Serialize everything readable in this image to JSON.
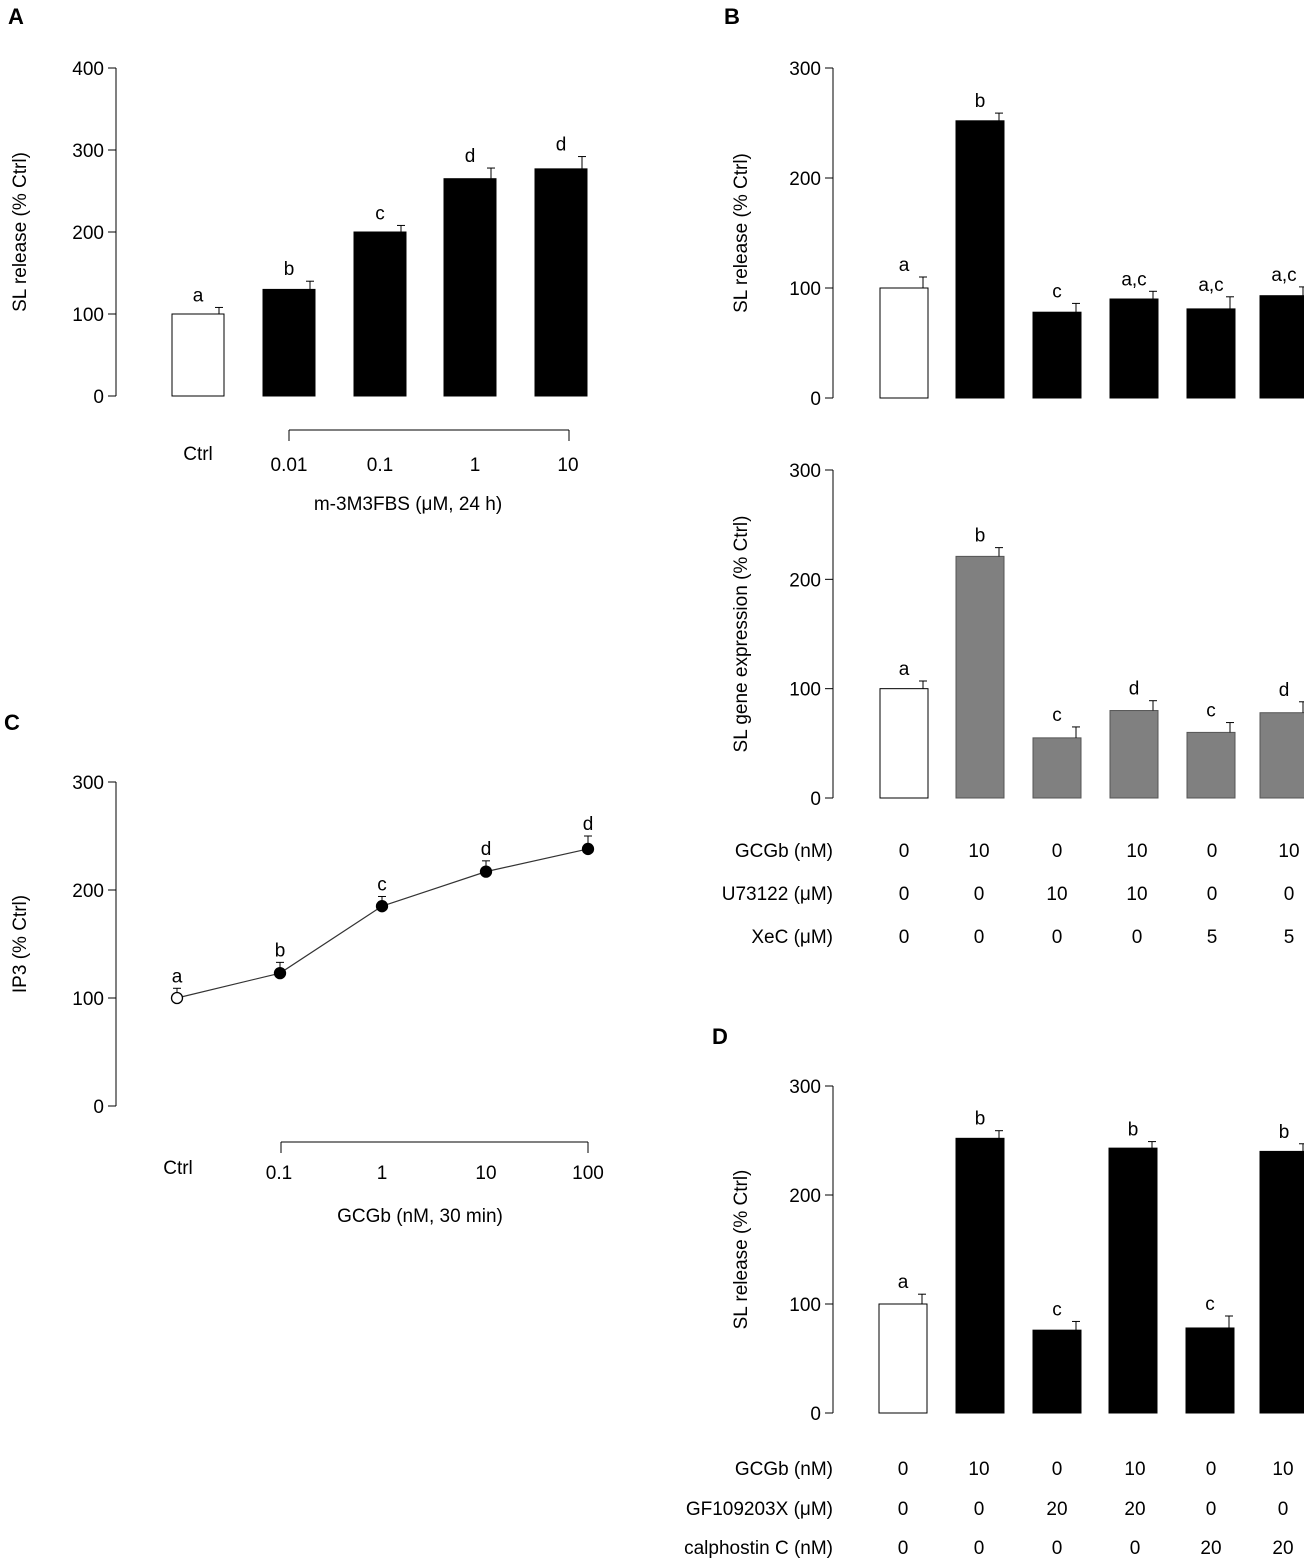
{
  "colors": {
    "black": "#000000",
    "white": "#ffffff",
    "gray": "#808080",
    "axis": "#000000"
  },
  "chart_data": [
    {
      "panel": "A",
      "type": "bar",
      "categories": [
        "Ctrl",
        "0.01",
        "0.1",
        "1",
        "10"
      ],
      "values": [
        100,
        130,
        200,
        265,
        277
      ],
      "errors": [
        8,
        10,
        8,
        13,
        15
      ],
      "fills": [
        "white",
        "black",
        "black",
        "black",
        "black"
      ],
      "letters": [
        "a",
        "b",
        "c",
        "d",
        "d"
      ],
      "ylabel": "SL release (% Ctrl)",
      "xlabel": "m-3M3FBS (μM, 24 h)",
      "ylim": [
        0,
        400
      ],
      "yticks": [
        "0",
        "100",
        "200",
        "300",
        "400"
      ]
    },
    {
      "panel": "B",
      "type": "bar",
      "values": [
        100,
        252,
        78,
        90,
        81,
        93
      ],
      "errors": [
        10,
        7,
        8,
        7,
        11,
        8
      ],
      "fills": [
        "white",
        "black",
        "black",
        "black",
        "black",
        "black"
      ],
      "letters": [
        "a",
        "b",
        "c",
        "a,c",
        "a,c",
        "a,c"
      ],
      "ylabel": "SL release (% Ctrl)",
      "ylim": [
        0,
        300
      ],
      "yticks": [
        "0",
        "100",
        "200",
        "300"
      ]
    },
    {
      "panel": "B-lower",
      "type": "bar",
      "values": [
        100,
        221,
        55,
        80,
        60,
        78
      ],
      "errors": [
        7,
        8,
        10,
        9,
        9,
        10
      ],
      "fills": [
        "white",
        "gray",
        "gray",
        "gray",
        "gray",
        "gray"
      ],
      "letters": [
        "a",
        "b",
        "c",
        "d",
        "c",
        "d"
      ],
      "ylabel": "SL gene expression (% Ctrl)",
      "ylim": [
        0,
        300
      ],
      "yticks": [
        "0",
        "100",
        "200",
        "300"
      ],
      "treatments": [
        {
          "label": "GCGb (nM)",
          "values": [
            "0",
            "10",
            "0",
            "10",
            "0",
            "10"
          ]
        },
        {
          "label": "U73122 (μM)",
          "values": [
            "0",
            "0",
            "10",
            "10",
            "0",
            "0"
          ]
        },
        {
          "label": "XeC (μM)",
          "values": [
            "0",
            "0",
            "0",
            "0",
            "5",
            "5"
          ]
        }
      ]
    },
    {
      "panel": "C",
      "type": "line",
      "categories": [
        "Ctrl",
        "0.1",
        "1",
        "10",
        "100"
      ],
      "values": [
        100,
        123,
        185,
        217,
        238
      ],
      "errors": [
        9,
        10,
        9,
        10,
        12
      ],
      "letters": [
        "a",
        "b",
        "c",
        "d",
        "d"
      ],
      "ylabel": "IP3 (% Ctrl)",
      "xlabel": "GCGb (nM, 30 min)",
      "ylim": [
        0,
        300
      ],
      "yticks": [
        "0",
        "100",
        "200",
        "300"
      ]
    },
    {
      "panel": "D",
      "type": "bar",
      "values": [
        100,
        252,
        76,
        243,
        78,
        240
      ],
      "errors": [
        9,
        7,
        8,
        6,
        11,
        7
      ],
      "fills": [
        "white",
        "black",
        "black",
        "black",
        "black",
        "black"
      ],
      "letters": [
        "a",
        "b",
        "c",
        "b",
        "c",
        "b"
      ],
      "ylabel": "SL release (% Ctrl)",
      "ylim": [
        0,
        300
      ],
      "yticks": [
        "0",
        "100",
        "200",
        "300"
      ],
      "treatments": [
        {
          "label": "GCGb (nM)",
          "values": [
            "0",
            "10",
            "0",
            "10",
            "0",
            "10"
          ]
        },
        {
          "label": "GF109203X (μM)",
          "values": [
            "0",
            "0",
            "20",
            "20",
            "0",
            "0"
          ]
        },
        {
          "label": "calphostin C (nM)",
          "values": [
            "0",
            "0",
            "0",
            "0",
            "20",
            "20"
          ]
        }
      ]
    }
  ]
}
